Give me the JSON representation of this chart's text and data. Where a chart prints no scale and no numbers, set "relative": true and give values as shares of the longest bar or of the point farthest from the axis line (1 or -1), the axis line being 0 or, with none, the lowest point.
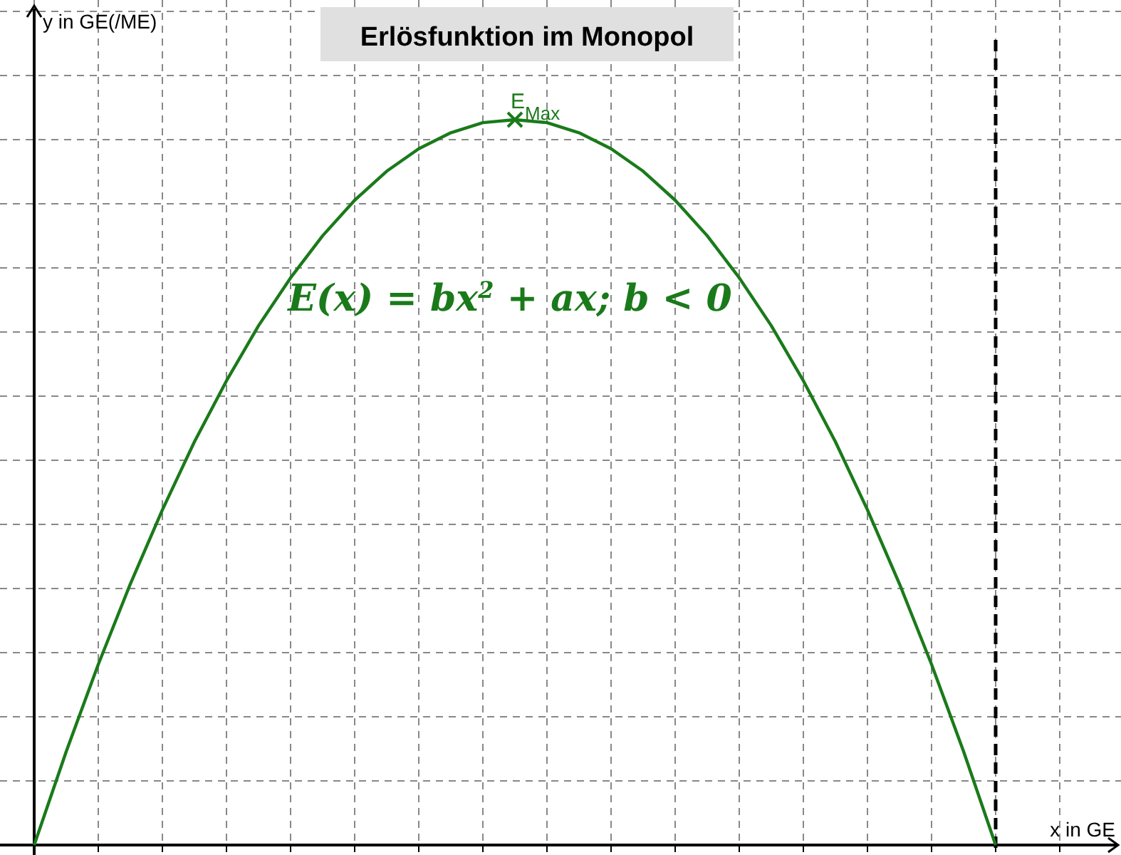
{
  "chart_data": {
    "type": "line",
    "title": "Erlösfunktion im Monopol",
    "xlabel": "x in GE",
    "ylabel": "y in GE(/ME)",
    "relative": true,
    "grid": true,
    "categories": [
      null,
      null,
      null,
      null,
      null,
      null,
      null,
      null,
      null,
      null,
      null,
      null,
      null,
      null,
      null,
      null,
      null,
      null,
      null,
      null,
      null,
      null,
      null,
      null,
      null,
      null,
      null,
      null,
      null,
      null,
      null
    ],
    "series": [
      {
        "color": "#1a7a1a",
        "line_style": "solid",
        "values": [
          0,
          0.129,
          0.249,
          0.36,
          0.462,
          0.556,
          0.64,
          0.716,
          0.782,
          0.84,
          0.889,
          0.929,
          0.96,
          0.982,
          0.996,
          1,
          0.996,
          0.982,
          0.96,
          0.929,
          0.889,
          0.84,
          0.782,
          0.716,
          0.64,
          0.556,
          0.462,
          0.36,
          0.249,
          0.129,
          0
        ]
      }
    ],
    "ref_lines": [
      {
        "axis": "x",
        "color": "#000000",
        "line_style": "dashed"
      }
    ],
    "annotations": [
      "E$_{Max}$",
      "E(x) = bx$^{2}$ + ax; b < 0"
    ]
  }
}
